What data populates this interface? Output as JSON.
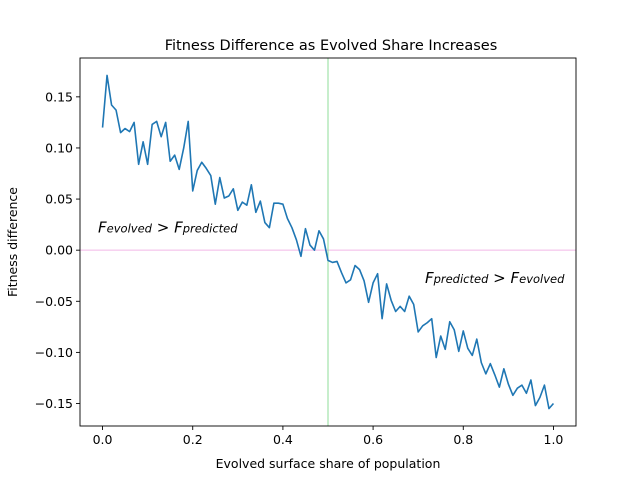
{
  "chart_data": {
    "type": "line",
    "title": "Fitness Difference as Evolved Share Increases",
    "xlabel": "Evolved surface share of population",
    "ylabel": "Fitness difference",
    "xlim": [
      -0.05,
      1.05
    ],
    "ylim": [
      -0.172,
      0.188
    ],
    "x_ticks": [
      0.0,
      0.2,
      0.4,
      0.6,
      0.8,
      1.0
    ],
    "y_ticks": [
      0.15,
      0.1,
      0.05,
      0.0,
      -0.05,
      -0.1,
      -0.15
    ],
    "grid": false,
    "colors": {
      "series": "#1f77b4",
      "hline": "#f2b6e8",
      "vline": "#8fdc9a"
    },
    "reference_lines": {
      "horizontal_y": 0.0,
      "vertical_x": 0.5
    },
    "annotations": [
      {
        "name": "evolved-gt-predicted",
        "x": -0.01,
        "y": 0.022,
        "lhs_base": "F",
        "lhs_sub": "evolved",
        "op": " > ",
        "rhs_base": "F",
        "rhs_sub": "predicted"
      },
      {
        "name": "predicted-gt-evolved",
        "x": 0.715,
        "y": -0.027,
        "lhs_base": "F",
        "lhs_sub": "predicted",
        "op": " > ",
        "rhs_base": "F",
        "rhs_sub": "evolved"
      }
    ],
    "series": [
      {
        "x": [
          0.0,
          0.01,
          0.02,
          0.03,
          0.04,
          0.05,
          0.06,
          0.07,
          0.08,
          0.09,
          0.1,
          0.11,
          0.12,
          0.13,
          0.14,
          0.15,
          0.16,
          0.17,
          0.18,
          0.19,
          0.2,
          0.21,
          0.22,
          0.23,
          0.24,
          0.25,
          0.26,
          0.27,
          0.28,
          0.29,
          0.3,
          0.31,
          0.32,
          0.33,
          0.34,
          0.35,
          0.36,
          0.37,
          0.38,
          0.39,
          0.4,
          0.41,
          0.42,
          0.43,
          0.44,
          0.45,
          0.46,
          0.47,
          0.48,
          0.49,
          0.5,
          0.51,
          0.52,
          0.53,
          0.54,
          0.55,
          0.56,
          0.57,
          0.58,
          0.59,
          0.6,
          0.61,
          0.62,
          0.63,
          0.64,
          0.65,
          0.66,
          0.67,
          0.68,
          0.69,
          0.7,
          0.71,
          0.72,
          0.73,
          0.74,
          0.75,
          0.76,
          0.77,
          0.78,
          0.79,
          0.8,
          0.81,
          0.82,
          0.83,
          0.84,
          0.85,
          0.86,
          0.87,
          0.88,
          0.89,
          0.9,
          0.91,
          0.92,
          0.93,
          0.94,
          0.95,
          0.96,
          0.97,
          0.98,
          0.99,
          1.0
        ],
        "y": [
          0.12,
          0.171,
          0.142,
          0.137,
          0.115,
          0.119,
          0.116,
          0.125,
          0.084,
          0.106,
          0.084,
          0.123,
          0.126,
          0.111,
          0.125,
          0.087,
          0.093,
          0.079,
          0.1,
          0.126,
          0.058,
          0.078,
          0.086,
          0.08,
          0.073,
          0.045,
          0.071,
          0.051,
          0.053,
          0.06,
          0.039,
          0.047,
          0.044,
          0.064,
          0.037,
          0.048,
          0.027,
          0.022,
          0.046,
          0.046,
          0.045,
          0.031,
          0.022,
          0.01,
          -0.006,
          0.021,
          0.005,
          0.0,
          0.019,
          0.011,
          -0.01,
          -0.012,
          -0.011,
          -0.022,
          -0.032,
          -0.029,
          -0.015,
          -0.019,
          -0.03,
          -0.051,
          -0.032,
          -0.023,
          -0.067,
          -0.033,
          -0.049,
          -0.06,
          -0.055,
          -0.06,
          -0.045,
          -0.053,
          -0.08,
          -0.074,
          -0.071,
          -0.067,
          -0.105,
          -0.084,
          -0.097,
          -0.07,
          -0.078,
          -0.099,
          -0.079,
          -0.096,
          -0.103,
          -0.087,
          -0.11,
          -0.121,
          -0.111,
          -0.122,
          -0.134,
          -0.116,
          -0.131,
          -0.142,
          -0.135,
          -0.132,
          -0.14,
          -0.127,
          -0.152,
          -0.144,
          -0.132,
          -0.155,
          -0.15
        ]
      }
    ]
  }
}
